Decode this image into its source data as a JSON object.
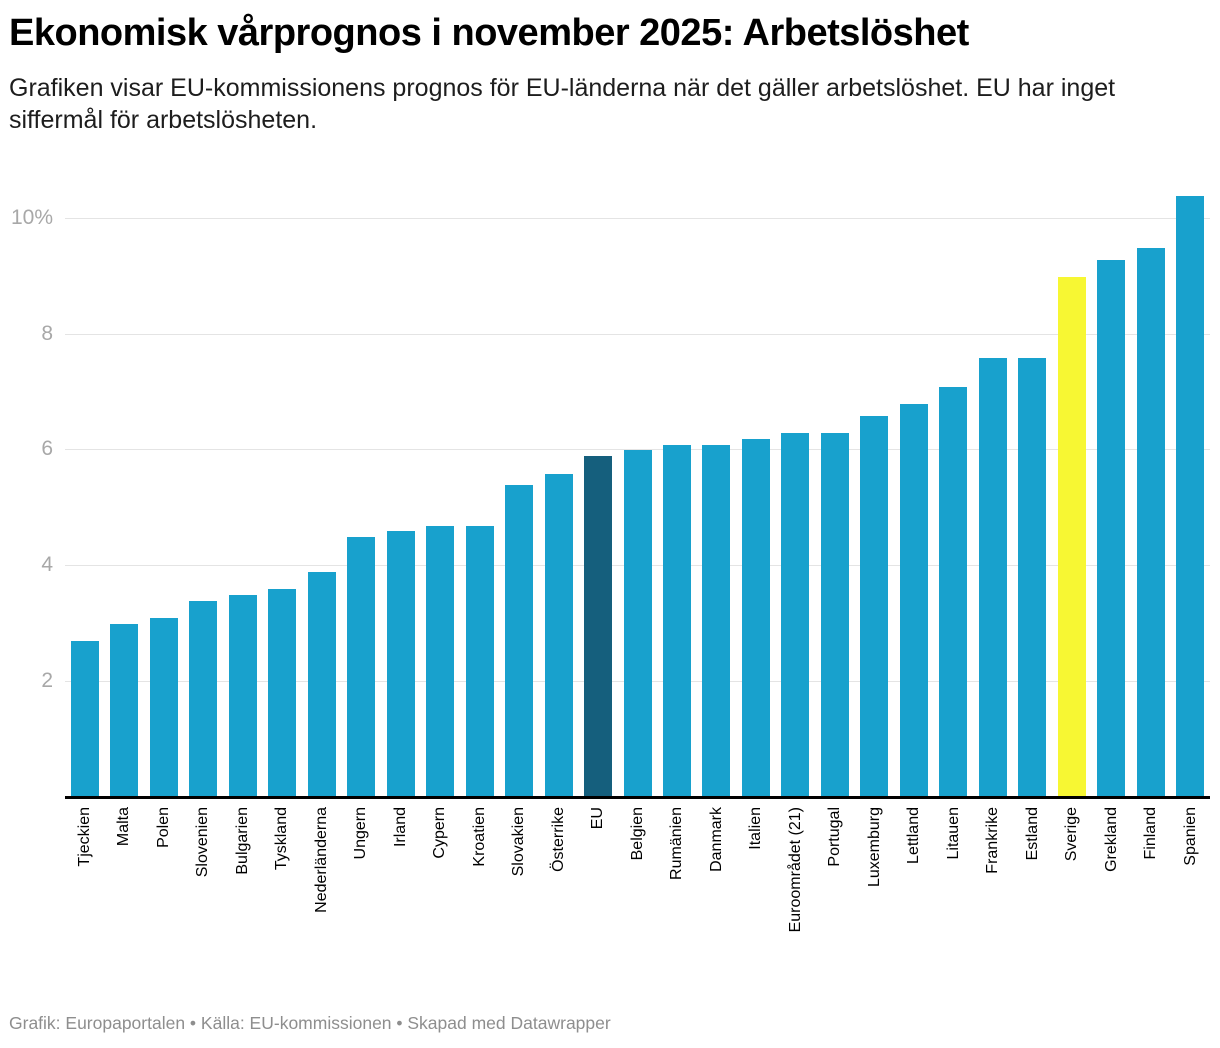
{
  "header": {
    "title": "Ekonomisk vårprognos i november 2025: Arbetslöshet",
    "subtitle": "Grafiken visar EU-kommissionens prognos för EU-länderna när det gäller arbetslöshet. EU har inget siffermål för arbetslösheten."
  },
  "footer": {
    "text": "Grafik: Europaportalen • Källa: EU-kommissionen • Skapad med Datawrapper"
  },
  "chart_data": {
    "type": "bar",
    "title": "Ekonomisk vårprognos i november 2025: Arbetslöshet",
    "xlabel": "",
    "ylabel": "",
    "unit": "%",
    "ylim": [
      0,
      10.65
    ],
    "grid": "horizontal",
    "legend": "none",
    "categories": [
      "Tjeckien",
      "Malta",
      "Polen",
      "Slovenien",
      "Bulgarien",
      "Tyskland",
      "Nederländerna",
      "Ungern",
      "Irland",
      "Cypern",
      "Kroatien",
      "Slovakien",
      "Österrike",
      "EU",
      "Belgien",
      "Rumänien",
      "Danmark",
      "Italien",
      "Euroområdet (21)",
      "Portugal",
      "Luxemburg",
      "Lettland",
      "Litauen",
      "Frankrike",
      "Estland",
      "Sverige",
      "Grekland",
      "Finland",
      "Spanien"
    ],
    "values": [
      2.7,
      3.0,
      3.1,
      3.4,
      3.5,
      3.6,
      3.9,
      4.5,
      4.6,
      4.7,
      4.7,
      5.4,
      5.6,
      5.9,
      6.0,
      6.1,
      6.1,
      6.2,
      6.3,
      6.3,
      6.6,
      6.8,
      7.1,
      7.6,
      7.6,
      9.0,
      9.3,
      9.5,
      10.4
    ],
    "color_keys": [
      "default",
      "default",
      "default",
      "default",
      "default",
      "default",
      "default",
      "default",
      "default",
      "default",
      "default",
      "default",
      "default",
      "eu",
      "default",
      "default",
      "default",
      "default",
      "default",
      "default",
      "default",
      "default",
      "default",
      "default",
      "default",
      "sweden",
      "default",
      "default",
      "default"
    ],
    "colors": {
      "default": "#18a1cd",
      "eu": "#155f7d",
      "sweden": "#f7f733"
    },
    "yticks": [
      {
        "value": 2,
        "label": "2"
      },
      {
        "value": 4,
        "label": "4"
      },
      {
        "value": 6,
        "label": "6"
      },
      {
        "value": 8,
        "label": "8"
      },
      {
        "value": 10,
        "label": "10%"
      }
    ],
    "highlighted_bars": {
      "eu": "EU",
      "sweden": "Sverige"
    }
  }
}
